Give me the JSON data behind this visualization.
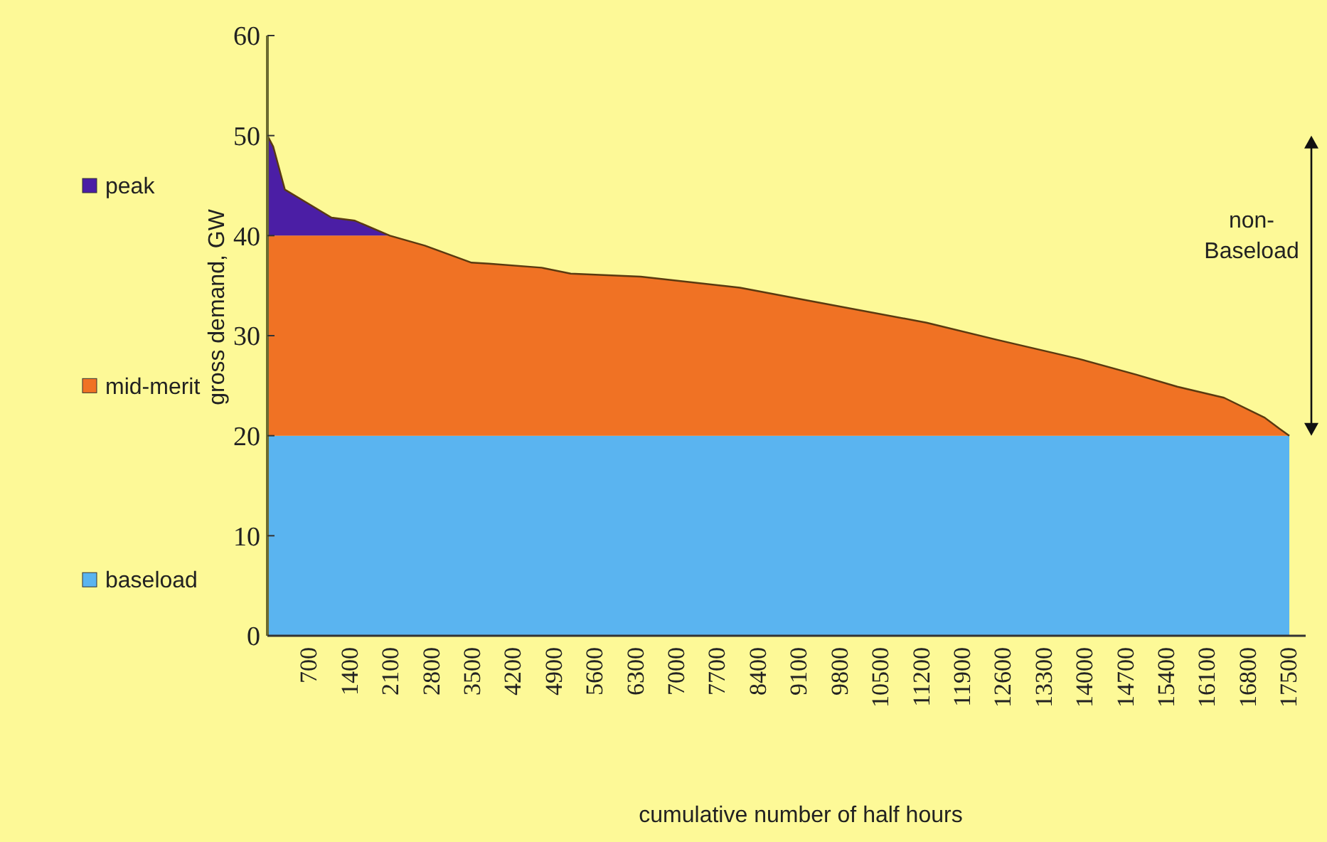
{
  "chart_data": {
    "type": "area",
    "stacked": true,
    "xlabel": "cumulative number of half hours",
    "ylabel": "gross demand, GW",
    "x": [
      0,
      100,
      300,
      700,
      1100,
      1500,
      2100,
      2700,
      3500,
      3800,
      4700,
      5200,
      6400,
      8100,
      9100,
      11300,
      12500,
      13900,
      14900,
      15600,
      16400,
      17100,
      17350,
      17520
    ],
    "series": [
      {
        "name": "baseload",
        "color": "#5ab4f0",
        "values": [
          20,
          20,
          20,
          20,
          20,
          20,
          20,
          20,
          20,
          20,
          20,
          20,
          20,
          20,
          20,
          20,
          20,
          20,
          20,
          20,
          20,
          20,
          20,
          20
        ]
      },
      {
        "name": "mid-merit",
        "color": "#f07224",
        "values": [
          20,
          20,
          20,
          20,
          20,
          20,
          20,
          19,
          17.3,
          17.2,
          16.8,
          16.2,
          15.9,
          14.8,
          13.7,
          11.3,
          9.6,
          7.7,
          6.1,
          4.9,
          3.8,
          1.8,
          0.7,
          0
        ]
      },
      {
        "name": "peak",
        "color": "#4b1ea5",
        "values": [
          10,
          8.9,
          4.6,
          3.2,
          1.8,
          1.5,
          0,
          0,
          0,
          0,
          0,
          0,
          0,
          0,
          0,
          0,
          0,
          0,
          0,
          0,
          0,
          0,
          0,
          0
        ]
      }
    ],
    "xlim": [
      0,
      17800
    ],
    "xticks": [
      700,
      1400,
      2100,
      2800,
      3500,
      4200,
      4900,
      5600,
      6300,
      7000,
      7700,
      8400,
      9100,
      9800,
      10500,
      11200,
      11900,
      12600,
      13300,
      14000,
      14700,
      15400,
      16100,
      16800,
      17500
    ],
    "ylim": [
      0,
      60
    ],
    "yticks": [
      0,
      10,
      20,
      30,
      40,
      50,
      60
    ],
    "annotations": [
      "non-Baseload"
    ],
    "legend": "left",
    "grid": false
  }
}
